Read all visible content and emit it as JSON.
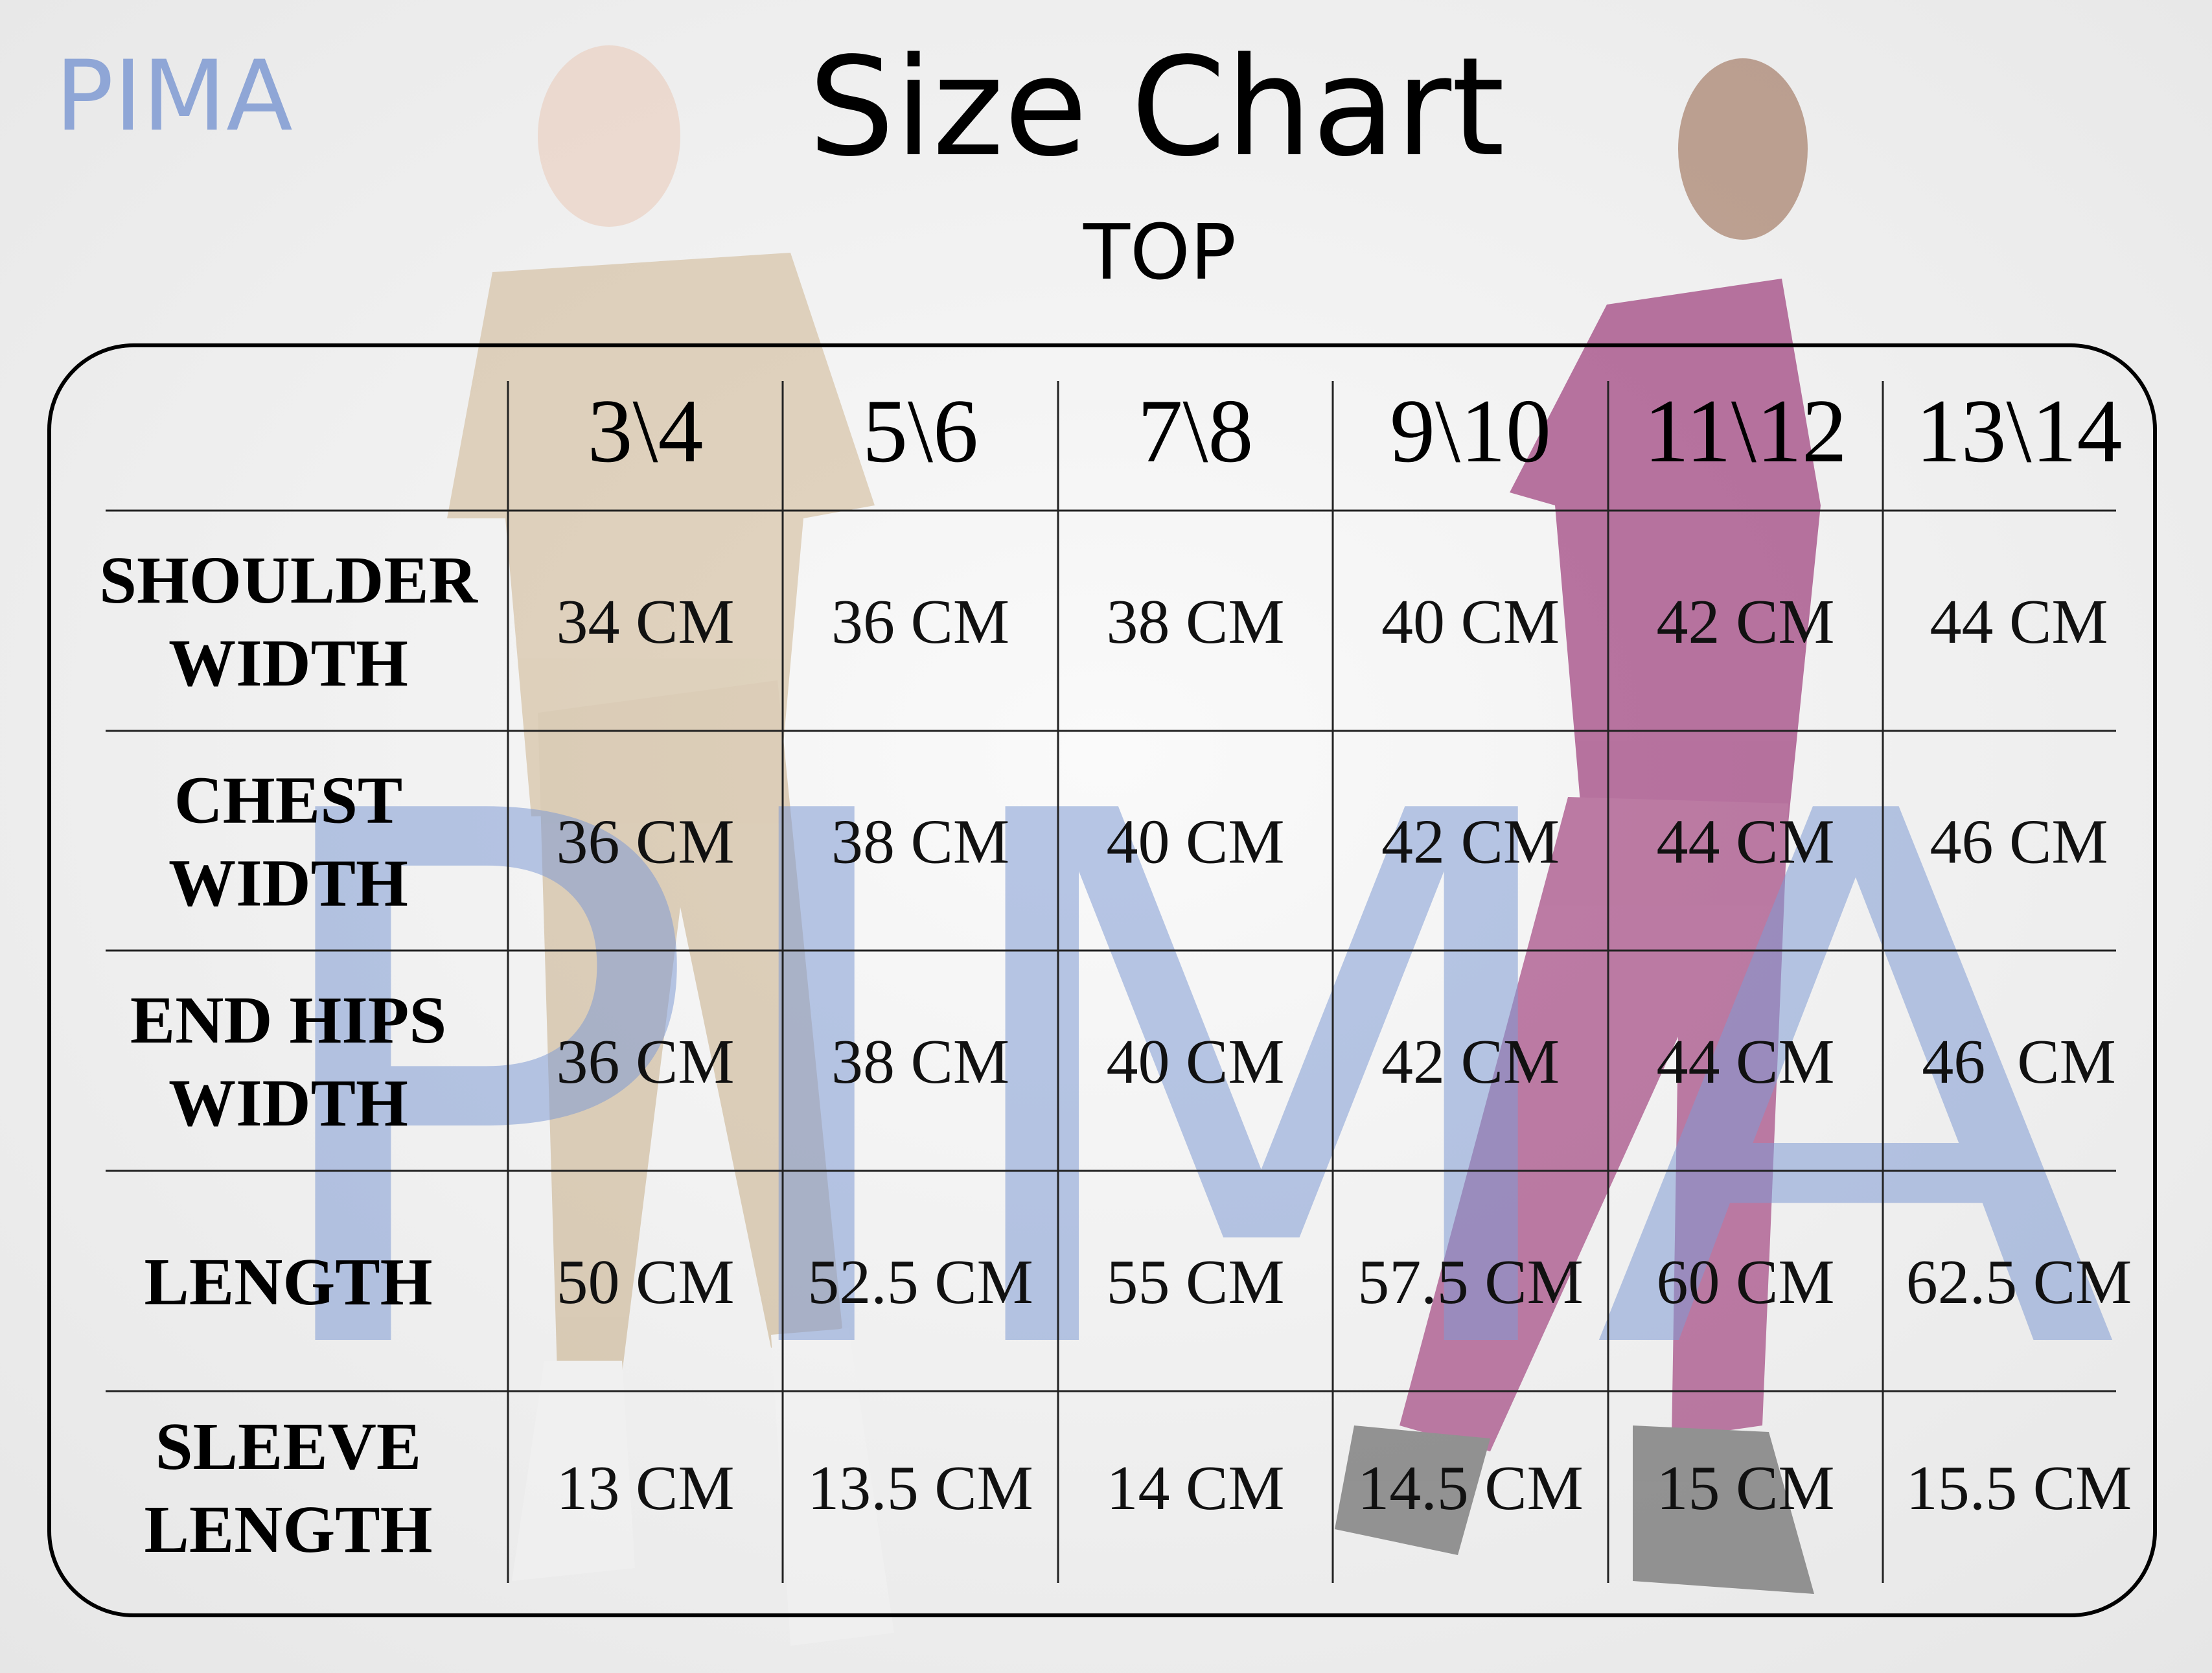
{
  "logo": "PIMA",
  "watermark": "PIMA",
  "header": {
    "title": "Size Chart",
    "subtitle": "TOP"
  },
  "table": {
    "sizes": [
      "3\\4",
      "5\\6",
      "7\\8",
      "9\\10",
      "11\\12",
      "13\\14"
    ],
    "rows": [
      {
        "label": [
          "SHOULDER",
          "WIDTH"
        ],
        "values": [
          "34 CM",
          "36 CM",
          "38 CM",
          "40 CM",
          "42 CM",
          "44 CM"
        ]
      },
      {
        "label": [
          "CHEST",
          "WIDTH"
        ],
        "values": [
          "36 CM",
          "38 CM",
          "40 CM",
          "42 CM",
          "44 CM",
          "46 CM"
        ]
      },
      {
        "label": [
          "END HIPS",
          "WIDTH"
        ],
        "values": [
          "36 CM",
          "38 CM",
          "40 CM",
          "42 CM",
          "44 CM",
          "46  CM"
        ]
      },
      {
        "label": [
          "LENGTH"
        ],
        "values": [
          "50 CM",
          "52.5 CM",
          "55 CM",
          "57.5 CM",
          "60 CM",
          "62.5 CM"
        ]
      },
      {
        "label": [
          "SLEEVE",
          "LENGTH"
        ],
        "values": [
          "13 CM",
          "13.5 CM",
          "14 CM",
          "14.5 CM",
          "15 CM",
          "15.5 CM"
        ]
      }
    ]
  }
}
